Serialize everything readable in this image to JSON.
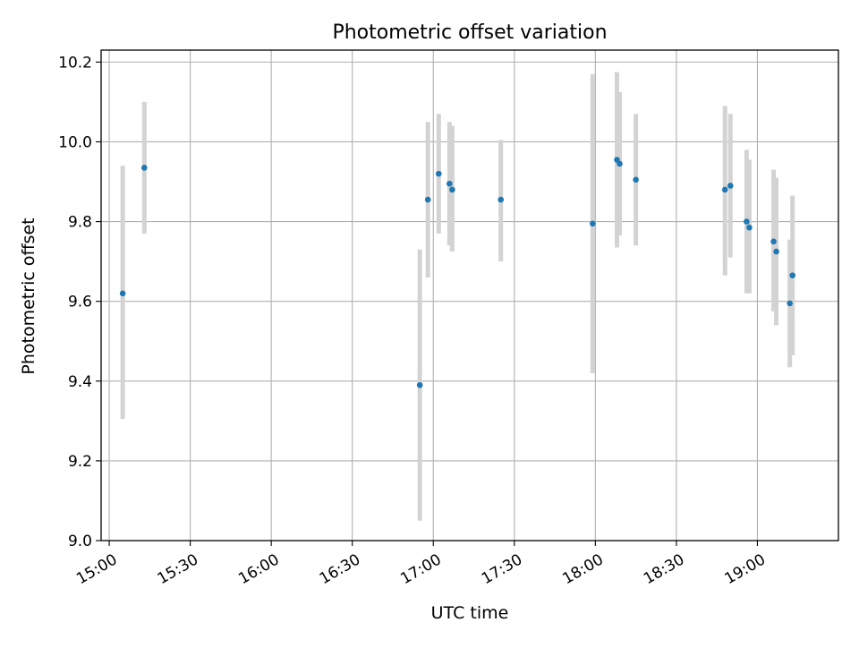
{
  "chart_data": {
    "type": "scatter",
    "title": "Photometric offset variation",
    "xlabel": "UTC time",
    "ylabel": "Photometric offset",
    "xlim": [
      "14:57",
      "19:30"
    ],
    "ylim": [
      9.0,
      10.23
    ],
    "x_ticks": [
      "15:00",
      "15:30",
      "16:00",
      "16:30",
      "17:00",
      "17:30",
      "18:00",
      "18:30",
      "19:00"
    ],
    "y_ticks": [
      "9.0",
      "9.2",
      "9.4",
      "9.6",
      "9.8",
      "10.0",
      "10.2"
    ],
    "grid": true,
    "colors": {
      "point": "#1f77b4",
      "errorbar": "#d3d3d3",
      "grid": "#b0b0b0",
      "axes": "#000000"
    },
    "series": [
      {
        "points": [
          {
            "x": "15:05",
            "y": 9.62,
            "err_low": 9.305,
            "err_high": 9.94
          },
          {
            "x": "15:13",
            "y": 9.935,
            "err_low": 9.77,
            "err_high": 10.1
          },
          {
            "x": "16:55",
            "y": 9.39,
            "err_low": 9.05,
            "err_high": 9.73
          },
          {
            "x": "16:58",
            "y": 9.855,
            "err_low": 9.66,
            "err_high": 10.05
          },
          {
            "x": "17:02",
            "y": 9.92,
            "err_low": 9.77,
            "err_high": 10.07
          },
          {
            "x": "17:06",
            "y": 9.895,
            "err_low": 9.74,
            "err_high": 10.05
          },
          {
            "x": "17:07",
            "y": 9.88,
            "err_low": 9.725,
            "err_high": 10.04
          },
          {
            "x": "17:25",
            "y": 9.855,
            "err_low": 9.7,
            "err_high": 10.005
          },
          {
            "x": "17:59",
            "y": 9.795,
            "err_low": 9.42,
            "err_high": 10.17
          },
          {
            "x": "18:08",
            "y": 9.955,
            "err_low": 9.735,
            "err_high": 10.175
          },
          {
            "x": "18:09",
            "y": 9.945,
            "err_low": 9.765,
            "err_high": 10.125
          },
          {
            "x": "18:15",
            "y": 9.905,
            "err_low": 9.74,
            "err_high": 10.07
          },
          {
            "x": "18:48",
            "y": 9.88,
            "err_low": 9.665,
            "err_high": 10.09
          },
          {
            "x": "18:50",
            "y": 9.89,
            "err_low": 9.71,
            "err_high": 10.07
          },
          {
            "x": "18:56",
            "y": 9.8,
            "err_low": 9.62,
            "err_high": 9.98
          },
          {
            "x": "18:57",
            "y": 9.785,
            "err_low": 9.62,
            "err_high": 9.955
          },
          {
            "x": "19:06",
            "y": 9.75,
            "err_low": 9.575,
            "err_high": 9.93
          },
          {
            "x": "19:07",
            "y": 9.725,
            "err_low": 9.54,
            "err_high": 9.91
          },
          {
            "x": "19:12",
            "y": 9.595,
            "err_low": 9.435,
            "err_high": 9.755
          },
          {
            "x": "19:13",
            "y": 9.665,
            "err_low": 9.465,
            "err_high": 9.865
          }
        ]
      }
    ]
  }
}
